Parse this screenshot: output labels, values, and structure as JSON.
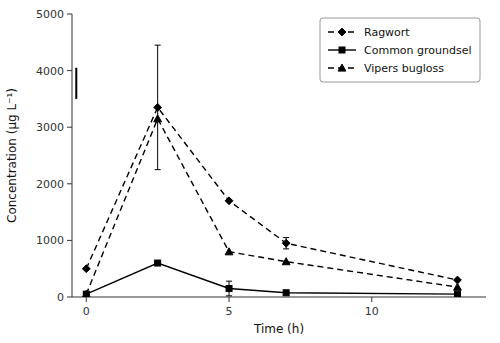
{
  "chart_data": {
    "type": "line",
    "xlabel": "Time (h)",
    "ylabel": "Concentration (μg L⁻¹)",
    "x": [
      0,
      2.5,
      5,
      7,
      13
    ],
    "series": [
      {
        "name": "Ragwort",
        "color": "black",
        "marker": "diamond",
        "line_style": "dashed",
        "values": [
          500,
          3350,
          1700,
          950,
          300
        ],
        "errors": [
          0,
          1100,
          0,
          100,
          0
        ]
      },
      {
        "name": "Common groundsel",
        "color": "black",
        "marker": "square",
        "line_style": "solid",
        "values": [
          50,
          600,
          150,
          75,
          50
        ],
        "errors": [
          0,
          0,
          130,
          0,
          0
        ]
      },
      {
        "name": "Vipers bugloss",
        "color": "black",
        "marker": "triangle",
        "line_style": "dashed",
        "values": [
          50,
          3150,
          800,
          625,
          175
        ]
      }
    ],
    "axis_error_bar": {
      "x": -0.35,
      "y": 3700,
      "low": 200,
      "high": 350,
      "color": "black"
    },
    "xlim": [
      -0.5,
      14
    ],
    "ylim": [
      0,
      5000
    ],
    "xticks": [
      0,
      5,
      10
    ],
    "yticks": [
      0,
      1000,
      2000,
      3000,
      4000,
      5000
    ],
    "grid": false,
    "legend": "upper right"
  }
}
